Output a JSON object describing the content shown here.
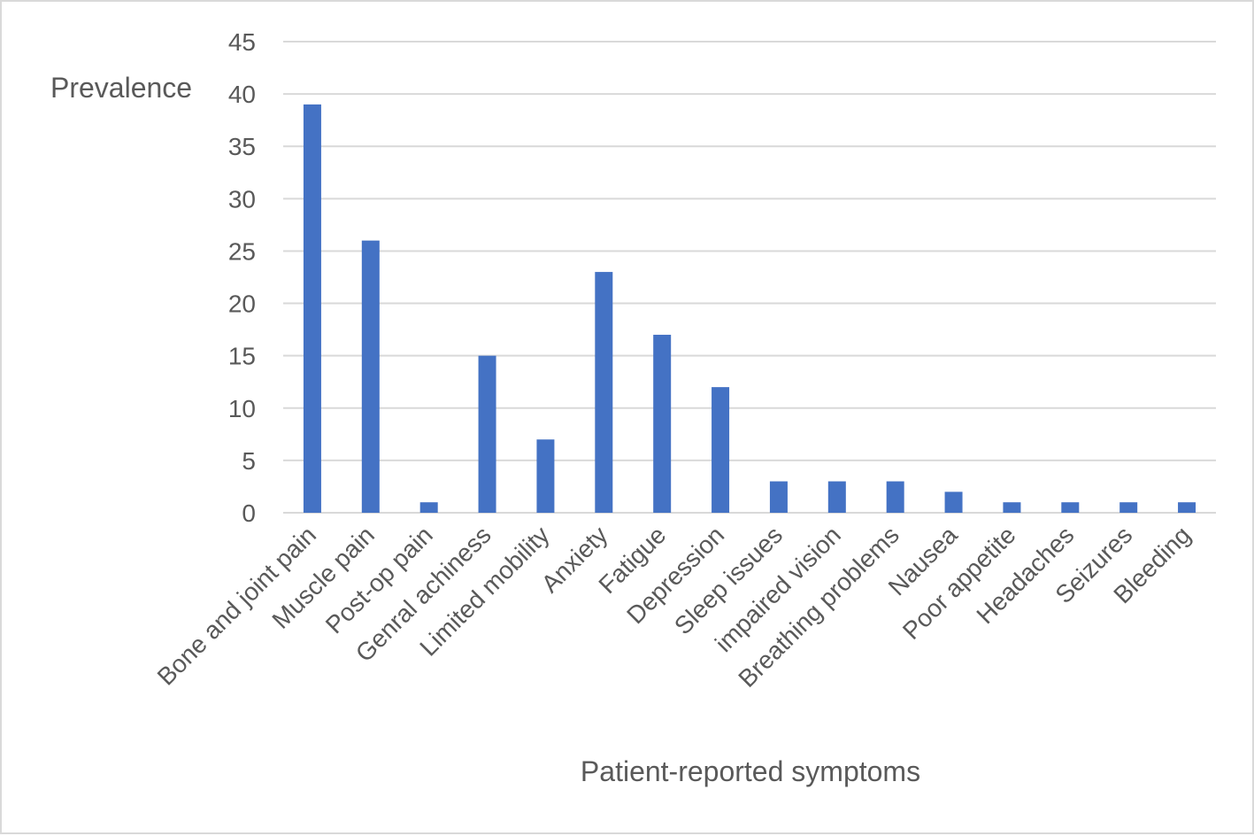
{
  "chart_data": {
    "type": "bar",
    "title": "",
    "xlabel": "Patient-reported symptoms",
    "ylabel": "Prevalence",
    "categories": [
      "Bone and joint pain",
      "Muscle pain",
      "Post-op pain",
      "Genral achiness",
      "Limited mobility",
      "Anxiety",
      "Fatigue",
      "Depression",
      "Sleep issues",
      "impaired vision",
      "Breathing problems",
      "Nausea",
      "Poor appetite",
      "Headaches",
      "Seizures",
      "Bleeding"
    ],
    "values": [
      39,
      26,
      1,
      15,
      7,
      23,
      17,
      12,
      3,
      3,
      3,
      2,
      1,
      1,
      1,
      1
    ],
    "ylim": [
      0,
      45
    ],
    "yticks": [
      0,
      5,
      10,
      15,
      20,
      25,
      30,
      35,
      40,
      45
    ],
    "grid": true,
    "legend": "none",
    "bar_color": "#4472c4",
    "grid_color": "#d9d9d9",
    "text_color": "#595959"
  }
}
